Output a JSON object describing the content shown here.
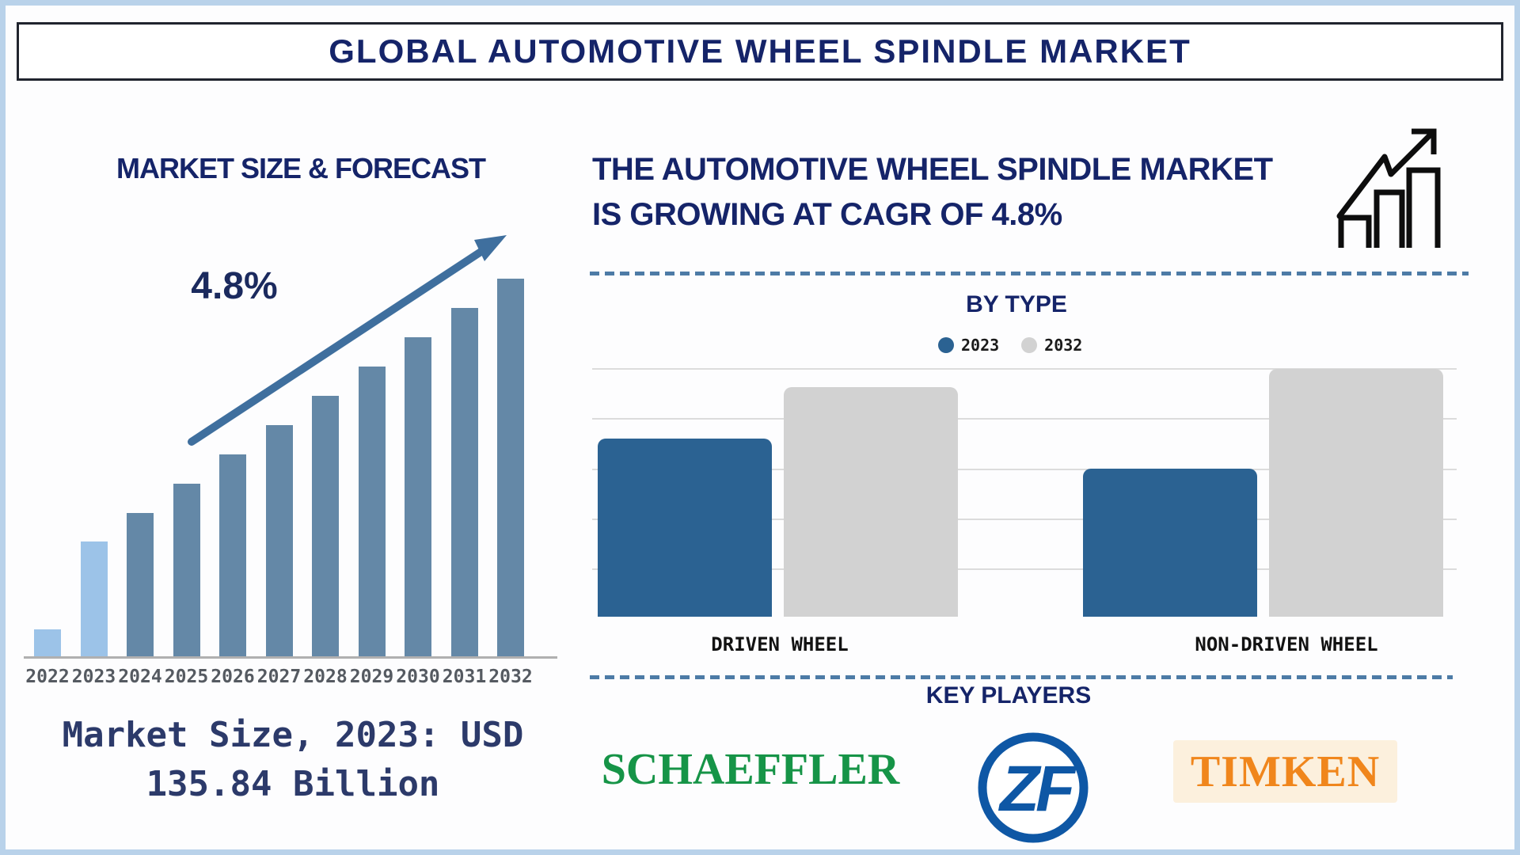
{
  "page": {
    "title": "GLOBAL AUTOMOTIVE WHEEL SPINDLE MARKET"
  },
  "left_panel": {
    "title": "MARKET SIZE & FORECAST",
    "cagr_label": "4.8%",
    "caption_line1": "Market Size, 2023: USD",
    "caption_line2": "135.84 Billion"
  },
  "right_panel": {
    "heading_line1": "THE AUTOMOTIVE WHEEL SPINDLE MARKET",
    "heading_line2": "IS GROWING AT CAGR OF 4.8%",
    "by_type_title": "BY TYPE",
    "key_players_title": "KEY PLAYERS",
    "players": [
      "SCHAEFFLER",
      "ZF",
      "TIMKEN"
    ]
  },
  "colors": {
    "navy_text": "#152469",
    "caption_navy": "#2c3a6a",
    "left_bar_light": "#9cc3e8",
    "left_bar_steel": "#6488a7",
    "trend_arrow": "#3f6f9e",
    "right_bar_2023": "#2b6292",
    "right_bar_2032": "#d0d0d0",
    "dashed_separator": "#4d7ba6",
    "frame_blue": "#b9d2ea",
    "schaeffler_green": "#169447",
    "zf_blue": "#0e57a5",
    "timken_orange": "#f0861c",
    "timken_background": "#fcf0dd"
  },
  "chart_data": [
    {
      "id": "market-size-forecast",
      "type": "bar",
      "title": "MARKET SIZE & FORECAST",
      "categories": [
        "2022",
        "2023",
        "2024",
        "2025",
        "2026",
        "2027",
        "2028",
        "2029",
        "2030",
        "2031",
        "2032"
      ],
      "values": [
        36,
        147,
        183,
        220,
        257,
        294,
        331,
        368,
        405,
        442,
        479
      ],
      "values_unit": "relative bar height px (stylized, no y-axis shown)",
      "bar_colors": [
        "#9cc3e8",
        "#9cc3e8",
        "#6488a7",
        "#6488a7",
        "#6488a7",
        "#6488a7",
        "#6488a7",
        "#6488a7",
        "#6488a7",
        "#6488a7",
        "#6488a7"
      ],
      "annotations": {
        "cagr": "4.8%",
        "market_size_2023": "USD 135.84 Billion"
      },
      "ylabel": "",
      "xlabel": "",
      "grid": false,
      "legend": "none"
    },
    {
      "id": "by-type",
      "type": "grouped_bar",
      "title": "BY TYPE",
      "categories": [
        "DRIVEN WHEEL",
        "NON-DRIVEN WHEEL"
      ],
      "series": [
        {
          "name": "2023",
          "color": "#2b6292",
          "values": [
            225,
            187
          ]
        },
        {
          "name": "2032",
          "color": "#d2d2d2",
          "values": [
            290,
            313
          ]
        }
      ],
      "values_unit": "relative bar height px (stylized, no y-axis shown)",
      "gridline_count": 5,
      "grid": true,
      "legend_position": "top"
    }
  ]
}
